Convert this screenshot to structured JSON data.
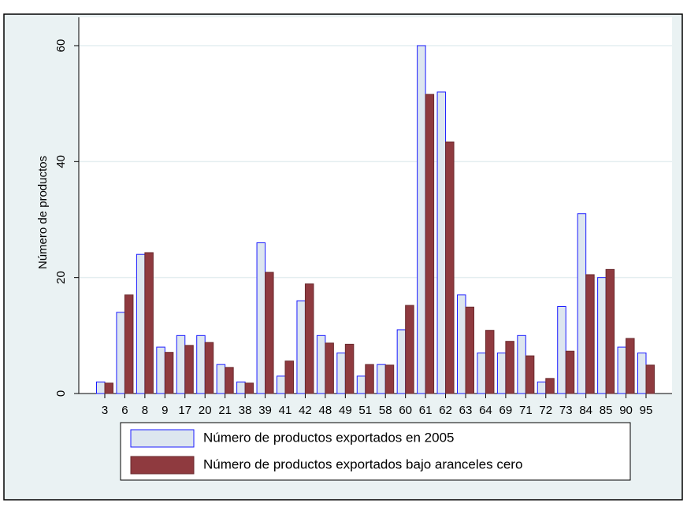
{
  "chart_data": {
    "type": "bar",
    "ylabel": "Número de productos",
    "categories": [
      "3",
      "6",
      "8",
      "9",
      "17",
      "20",
      "21",
      "38",
      "39",
      "41",
      "42",
      "48",
      "49",
      "51",
      "58",
      "60",
      "61",
      "62",
      "63",
      "64",
      "69",
      "71",
      "72",
      "73",
      "84",
      "85",
      "90",
      "95"
    ],
    "series": [
      {
        "name": "Número de productos exportados en 2005",
        "color": "#dde6ef",
        "edgecolor": "#1a1aff",
        "values": [
          2,
          14,
          24,
          8,
          10,
          10,
          5,
          2,
          26,
          3,
          16,
          10,
          7,
          3,
          5,
          11,
          60,
          52,
          17,
          7,
          7,
          10,
          2,
          15,
          31,
          20,
          8,
          7
        ]
      },
      {
        "name": "Número de productos exportados bajo aranceles cero",
        "color": "#8f3a3f",
        "edgecolor": "#6a2a2e",
        "values": [
          1.8,
          17,
          24.3,
          7.1,
          8.3,
          8.8,
          4.5,
          1.8,
          20.9,
          5.6,
          18.9,
          8.7,
          8.5,
          5,
          4.9,
          15.2,
          51.6,
          43.4,
          14.9,
          10.9,
          9,
          6.5,
          2.6,
          7.3,
          20.5,
          21.4,
          9.5,
          4.9
        ]
      }
    ],
    "ylim": [
      0,
      60
    ],
    "yticks": [
      0,
      20,
      40,
      60
    ],
    "grid": true
  }
}
